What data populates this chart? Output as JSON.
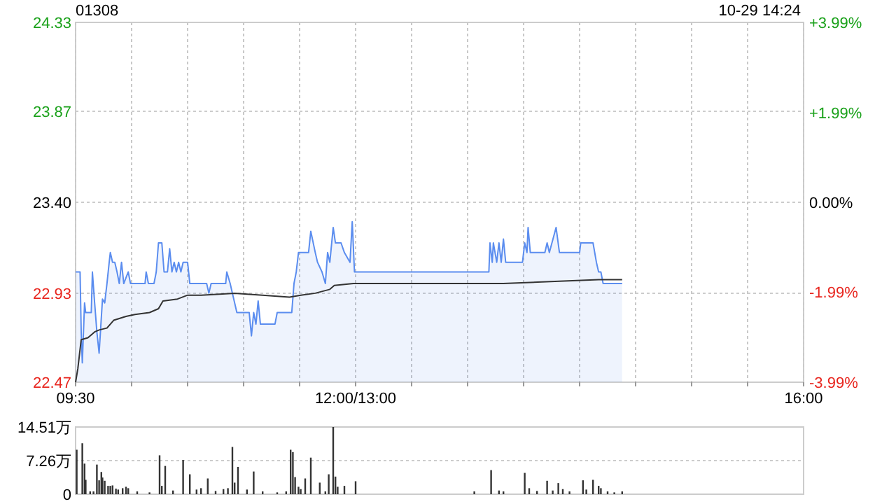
{
  "chart_data": [
    {
      "type": "line",
      "title": "01308",
      "annotations": [
        "10-29 14:24"
      ],
      "xlim": [
        9.5,
        16
      ],
      "xticks": [
        {
          "value": 9.5,
          "label": "09:30"
        },
        {
          "value": 10,
          "label": null
        },
        {
          "value": 10.5,
          "label": null
        },
        {
          "value": 11,
          "label": null
        },
        {
          "value": 11.5,
          "label": null
        },
        {
          "value": 12,
          "label": "12:00/13:00"
        },
        {
          "value": 12.5,
          "label": null
        },
        {
          "value": 13,
          "label": null
        },
        {
          "value": 13.5,
          "label": null
        },
        {
          "value": 14,
          "label": null
        },
        {
          "value": 14.5,
          "label": null
        },
        {
          "value": 15,
          "label": null
        },
        {
          "value": 15.5,
          "label": null
        },
        {
          "value": 16,
          "label": "16:00"
        }
      ],
      "ylim": [
        22.47,
        24.33
      ],
      "yticks": [
        22.47,
        22.93,
        {
          "value": 23.4,
          "label": "23.40"
        },
        23.87,
        24.33
      ],
      "y2lim": [
        -3.99,
        3.99
      ],
      "y2ticks": [
        {
          "value": -3.99,
          "label": "-3.99%"
        },
        {
          "value": -1.99,
          "label": "-1.99%"
        },
        {
          "value": 0,
          "label": "0.00%"
        },
        {
          "value": 1.99,
          "label": "+1.99%"
        },
        {
          "value": 3.99,
          "label": "+3.99%"
        }
      ],
      "grid": true,
      "series": [
        {
          "type": "area",
          "color": "#5b8def",
          "x": [
            9.5,
            9.54,
            9.55,
            9.56,
            9.58,
            9.59,
            9.64,
            9.65,
            9.67,
            9.69,
            9.71,
            9.74,
            9.76,
            9.78,
            9.8,
            9.81,
            9.83,
            9.85,
            9.87,
            9.89,
            9.91,
            9.93,
            9.97,
            9.99,
            10.12,
            10.13,
            10.15,
            10.2,
            10.22,
            10.24,
            10.27,
            10.29,
            10.32,
            10.34,
            10.36,
            10.38,
            10.4,
            10.42,
            10.44,
            10.46,
            10.5,
            10.52,
            10.67,
            10.69,
            10.71,
            10.84,
            10.85,
            10.88,
            10.9,
            10.94,
            11.05,
            11.07,
            11.09,
            11.11,
            11.13,
            11.15,
            11.28,
            11.3,
            11.43,
            11.45,
            11.47,
            11.49,
            11.58,
            11.6,
            11.64,
            11.66,
            11.7,
            11.73,
            11.75,
            11.77,
            11.8,
            11.82,
            11.87,
            11.9,
            11.95,
            11.97,
            11.99,
            13.19,
            13.2,
            13.22,
            13.23,
            13.26,
            13.28,
            13.3,
            13.32,
            13.34,
            13.49,
            13.51,
            13.53,
            13.54,
            13.56,
            13.69,
            13.71,
            13.73,
            13.79,
            13.82,
            14.0,
            14.01,
            14.12,
            14.15,
            14.17,
            14.19,
            14.21,
            14.38
          ],
          "values": [
            23.04,
            23.04,
            22.73,
            22.57,
            22.88,
            22.83,
            22.83,
            23.04,
            22.88,
            22.73,
            22.62,
            22.9,
            22.88,
            22.98,
            23.09,
            23.14,
            23.09,
            23.09,
            23.04,
            22.98,
            23.09,
            22.98,
            23.04,
            22.98,
            22.98,
            23.04,
            22.98,
            22.98,
            23.04,
            23.19,
            23.19,
            23.04,
            23.04,
            23.16,
            23.04,
            23.09,
            23.04,
            23.09,
            23.04,
            23.09,
            23.09,
            22.98,
            22.98,
            22.93,
            22.98,
            22.98,
            23.04,
            22.98,
            22.93,
            22.83,
            22.83,
            22.71,
            22.83,
            22.77,
            22.89,
            22.77,
            22.77,
            22.83,
            22.83,
            22.98,
            23.04,
            23.14,
            23.14,
            23.25,
            23.14,
            23.09,
            23.04,
            22.98,
            23.14,
            23.09,
            23.27,
            23.19,
            23.19,
            23.14,
            23.09,
            23.3,
            23.04,
            23.04,
            23.19,
            23.09,
            23.19,
            23.09,
            23.19,
            23.09,
            23.21,
            23.09,
            23.09,
            23.19,
            23.14,
            23.27,
            23.14,
            23.14,
            23.19,
            23.14,
            23.27,
            23.14,
            23.14,
            23.19,
            23.19,
            23.09,
            23.04,
            23.04,
            22.98,
            22.98
          ]
        },
        {
          "type": "line",
          "color": "#333333",
          "x": [
            9.5,
            9.52,
            9.55,
            9.61,
            9.67,
            9.71,
            9.78,
            9.84,
            9.95,
            10.03,
            10.16,
            10.24,
            10.28,
            10.41,
            10.5,
            10.62,
            10.92,
            11.17,
            11.41,
            11.51,
            11.64,
            11.77,
            11.81,
            11.98,
            13.32,
            13.74,
            14.17,
            14.38
          ],
          "values": [
            22.47,
            22.54,
            22.69,
            22.7,
            22.73,
            22.74,
            22.75,
            22.79,
            22.81,
            22.82,
            22.83,
            22.85,
            22.89,
            22.9,
            22.92,
            22.92,
            22.93,
            22.92,
            22.91,
            22.92,
            22.93,
            22.95,
            22.97,
            22.98,
            22.98,
            22.99,
            23.0,
            23.0
          ]
        }
      ]
    },
    {
      "type": "bar",
      "color": "#333333",
      "xlim": [
        9.5,
        16
      ],
      "ylim": [
        0,
        14.51
      ],
      "yticks": [
        0,
        {
          "value": 7.26,
          "label": "7.26万"
        },
        {
          "value": 14.51,
          "label": "14.51万"
        }
      ],
      "grid": "y",
      "tick_labels": "y",
      "x": [
        9.51,
        9.56,
        9.58,
        9.59,
        9.63,
        9.66,
        9.69,
        9.71,
        9.73,
        9.74,
        9.76,
        9.79,
        9.81,
        9.83,
        9.86,
        9.88,
        9.92,
        9.95,
        9.97,
        10.05,
        10.16,
        10.25,
        10.27,
        10.3,
        10.37,
        10.46,
        10.52,
        10.58,
        10.62,
        10.68,
        10.75,
        10.82,
        10.86,
        10.9,
        10.92,
        10.95,
        11.03,
        11.09,
        11.17,
        11.3,
        11.38,
        11.42,
        11.44,
        11.46,
        11.49,
        11.51,
        11.55,
        11.6,
        11.68,
        11.73,
        11.76,
        11.8,
        11.82,
        11.84,
        11.9,
        12.0,
        13.06,
        13.21,
        13.28,
        13.32,
        13.51,
        13.55,
        13.62,
        13.71,
        13.76,
        13.81,
        13.85,
        13.91,
        14.03,
        14.06,
        14.12,
        14.17,
        14.19,
        14.25,
        14.31,
        14.38
      ],
      "values": [
        9.6,
        11.0,
        6.6,
        3.1,
        0.6,
        0.6,
        6.4,
        3.0,
        4.8,
        3.6,
        2.9,
        1.8,
        1.8,
        1.9,
        1.2,
        1.0,
        1.3,
        1.6,
        1.3,
        0.6,
        0.4,
        8.4,
        1.8,
        6.1,
        0.8,
        7.4,
        4.3,
        1.0,
        1.3,
        3.4,
        0.7,
        1.1,
        1.3,
        10.2,
        2.5,
        5.9,
        1.0,
        4.9,
        0.6,
        0.4,
        0.6,
        9.6,
        9.1,
        3.7,
        1.6,
        1.1,
        3.4,
        7.9,
        2.5,
        0.6,
        4.3,
        14.51,
        3.8,
        1.6,
        1.8,
        2.8,
        0.6,
        5.2,
        0.8,
        0.6,
        4.6,
        1.3,
        0.7,
        2.9,
        0.8,
        2.4,
        1.1,
        0.6,
        3.0,
        1.0,
        3.1,
        1.8,
        1.3,
        0.6,
        0.4,
        0.6
      ]
    }
  ]
}
